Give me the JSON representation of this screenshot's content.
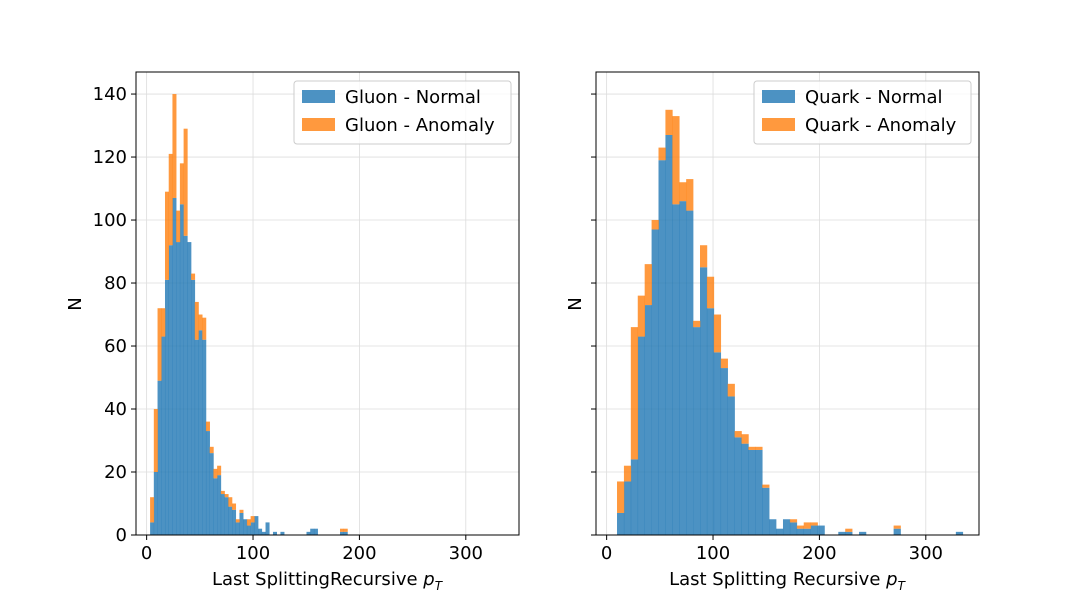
{
  "colors": {
    "normal": "#1f77b4",
    "anomaly": "#ff7f0e"
  },
  "chart_data": [
    {
      "type": "bar",
      "stacked": true,
      "xlim": [
        -10,
        350
      ],
      "ylim": [
        0,
        147
      ],
      "xticks": [
        0,
        100,
        200,
        300
      ],
      "yticks": [
        0,
        20,
        40,
        60,
        80,
        100,
        120,
        140
      ],
      "xlabel": "Last SplittingRecursive",
      "xlabel_math": "pT",
      "ylabel": "N",
      "grid": true,
      "legend_position": "top-right",
      "bin_width": 3.5,
      "series": [
        {
          "name": "Gluon - Normal",
          "x": [
            5,
            8.5,
            12,
            15.5,
            19,
            22.5,
            26,
            29.5,
            33,
            36.5,
            40,
            43.5,
            47,
            50.5,
            54,
            57.5,
            61,
            64.5,
            68,
            71.5,
            75,
            78.5,
            82,
            85.5,
            89,
            92.5,
            96,
            99.5,
            103,
            106.5,
            110,
            113.5,
            120.5,
            127.5,
            152,
            155.5,
            159,
            183.5,
            187
          ],
          "values": [
            4,
            20,
            49,
            63,
            81,
            92,
            107,
            93,
            105,
            95,
            93,
            81,
            62,
            65,
            62,
            33,
            26,
            18,
            19,
            13,
            12,
            9,
            8,
            4,
            7,
            5,
            3,
            4,
            6,
            2,
            1,
            4,
            1,
            1,
            1,
            2,
            2,
            1,
            1
          ]
        },
        {
          "name": "Gluon - Anomaly",
          "x": [
            5,
            8.5,
            12,
            15.5,
            19,
            22.5,
            26,
            29.5,
            33,
            36.5,
            40,
            43.5,
            47,
            50.5,
            54,
            57.5,
            61,
            64.5,
            68,
            71.5,
            75,
            78.5,
            82,
            85.5,
            89,
            92.5,
            96,
            99.5,
            103,
            106.5,
            110,
            113.5,
            120.5,
            127.5,
            152,
            155.5,
            159,
            183.5,
            187
          ],
          "values": [
            8,
            20,
            23,
            9,
            28,
            29,
            33,
            10,
            13,
            34,
            0,
            2,
            12,
            5,
            7,
            3,
            2,
            3,
            3,
            1,
            1,
            3,
            2,
            1,
            1,
            0,
            2,
            2,
            0,
            0,
            0,
            0,
            0,
            0,
            0,
            0,
            0,
            1,
            1
          ]
        }
      ]
    },
    {
      "type": "bar",
      "stacked": true,
      "xlim": [
        -10,
        350
      ],
      "ylim": [
        0,
        147
      ],
      "xticks": [
        0,
        100,
        200,
        300
      ],
      "yticks": [
        0,
        20,
        40,
        60,
        80,
        100,
        120,
        140
      ],
      "xlabel": "Last Splitting Recursive",
      "xlabel_math": "pT",
      "ylabel": "N",
      "grid": true,
      "legend_position": "top-right",
      "bin_width": 6.5,
      "series": [
        {
          "name": "Quark - Normal",
          "x": [
            13,
            19.5,
            26,
            32.5,
            39,
            45.5,
            52,
            58.5,
            65,
            71.5,
            78,
            84.5,
            91,
            97.5,
            104,
            110.5,
            117,
            123.5,
            130,
            136.5,
            143,
            149.5,
            156,
            162.5,
            169,
            175.5,
            182,
            188.5,
            195,
            201.5,
            221,
            227.5,
            240.5,
            273,
            331.5
          ],
          "values": [
            7,
            17,
            24,
            63,
            73,
            97,
            119,
            127,
            105,
            106,
            103,
            66,
            85,
            72,
            58,
            53,
            44,
            31,
            29,
            27,
            27,
            15,
            5,
            2,
            5,
            4,
            2,
            2,
            3,
            3,
            1,
            1,
            1,
            2,
            1
          ]
        },
        {
          "name": "Quark - Anomaly",
          "x": [
            13,
            19.5,
            26,
            32.5,
            39,
            45.5,
            52,
            58.5,
            65,
            71.5,
            78,
            84.5,
            91,
            97.5,
            104,
            110.5,
            117,
            123.5,
            130,
            136.5,
            143,
            149.5,
            156,
            162.5,
            169,
            175.5,
            182,
            188.5,
            195,
            201.5,
            221,
            227.5,
            240.5,
            273,
            331.5
          ],
          "values": [
            10,
            5,
            42,
            13,
            13,
            3,
            4,
            8,
            28,
            6,
            10,
            2,
            7,
            10,
            12,
            3,
            4,
            2,
            3,
            1,
            1,
            1,
            0,
            0,
            0,
            1,
            1,
            2,
            1,
            0,
            0,
            1,
            0,
            1,
            0
          ]
        }
      ]
    }
  ]
}
